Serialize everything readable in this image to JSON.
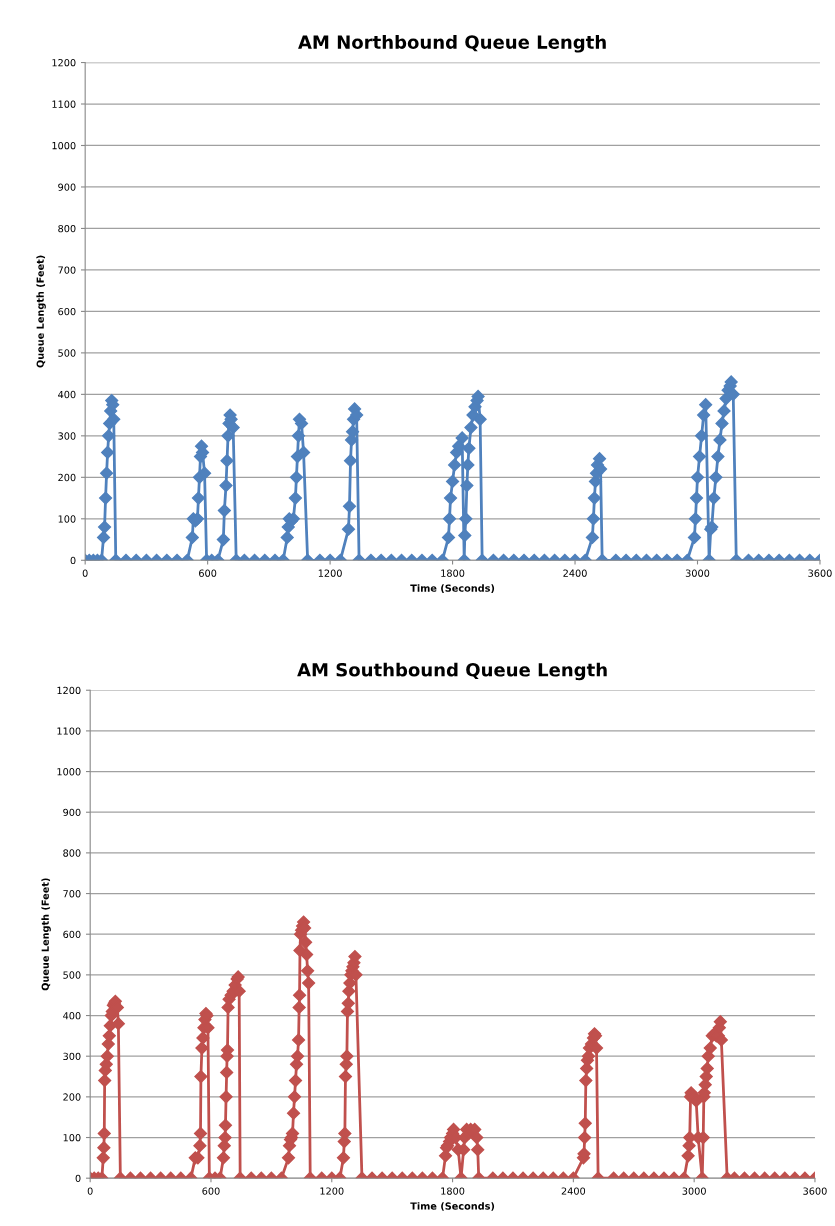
{
  "chart_data": [
    {
      "type": "line",
      "title": "AM Northbound Queue Length",
      "xlabel": "Time (Seconds)",
      "ylabel": "Queue Length (Feet)",
      "xlim": [
        0,
        3600
      ],
      "ylim": [
        0,
        1200
      ],
      "xticks": [
        0,
        600,
        1200,
        1800,
        2400,
        3000,
        3600
      ],
      "yticks": [
        0,
        100,
        200,
        300,
        400,
        500,
        600,
        700,
        800,
        900,
        1000,
        1100,
        1200
      ],
      "grid": "y",
      "marker": "diamond",
      "line_style": "solid",
      "series": [
        {
          "color": "#4f81bd",
          "x": [
            0,
            20,
            40,
            60,
            80,
            90,
            95,
            100,
            105,
            110,
            115,
            120,
            125,
            130,
            135,
            140,
            150,
            200,
            250,
            300,
            350,
            400,
            450,
            500,
            525,
            530,
            540,
            550,
            555,
            560,
            565,
            570,
            575,
            585,
            595,
            620,
            650,
            677,
            682,
            690,
            695,
            700,
            705,
            710,
            715,
            725,
            740,
            780,
            830,
            880,
            930,
            970,
            990,
            995,
            1000,
            1010,
            1020,
            1030,
            1035,
            1040,
            1045,
            1050,
            1060,
            1070,
            1090,
            1150,
            1200,
            1250,
            1290,
            1295,
            1300,
            1305,
            1310,
            1315,
            1320,
            1330,
            1342,
            1400,
            1450,
            1500,
            1550,
            1600,
            1650,
            1700,
            1750,
            1780,
            1785,
            1790,
            1800,
            1810,
            1820,
            1830,
            1847,
            1857,
            1860,
            1865,
            1870,
            1875,
            1880,
            1890,
            1900,
            1910,
            1920,
            1925,
            1935,
            1945,
            2000,
            2050,
            2100,
            2150,
            2200,
            2250,
            2300,
            2350,
            2400,
            2450,
            2485,
            2490,
            2495,
            2500,
            2505,
            2510,
            2520,
            2525,
            2533,
            2600,
            2650,
            2700,
            2750,
            2800,
            2850,
            2900,
            2950,
            2985,
            2990,
            2995,
            3000,
            3010,
            3020,
            3030,
            3040,
            3057,
            3065,
            3070,
            3080,
            3090,
            3100,
            3110,
            3120,
            3130,
            3140,
            3150,
            3160,
            3165,
            3175,
            3190,
            3250,
            3300,
            3350,
            3400,
            3450,
            3500,
            3550,
            3600
          ],
          "values": [
            0,
            0,
            0,
            0,
            0,
            55,
            80,
            150,
            210,
            260,
            300,
            330,
            360,
            385,
            375,
            340,
            0,
            0,
            0,
            0,
            0,
            0,
            0,
            0,
            55,
            100,
            95,
            100,
            150,
            200,
            250,
            275,
            260,
            210,
            0,
            0,
            0,
            50,
            120,
            180,
            240,
            300,
            330,
            350,
            340,
            320,
            0,
            0,
            0,
            0,
            0,
            0,
            55,
            80,
            100,
            95,
            100,
            150,
            200,
            250,
            300,
            340,
            330,
            260,
            0,
            0,
            0,
            0,
            75,
            130,
            240,
            290,
            310,
            340,
            365,
            350,
            0,
            0,
            0,
            0,
            0,
            0,
            0,
            0,
            0,
            55,
            100,
            150,
            190,
            230,
            260,
            275,
            295,
            0,
            60,
            100,
            180,
            230,
            270,
            320,
            350,
            370,
            385,
            395,
            340,
            0,
            0,
            0,
            0,
            0,
            0,
            0,
            0,
            0,
            0,
            0,
            55,
            100,
            150,
            190,
            210,
            230,
            245,
            220,
            0,
            0,
            0,
            0,
            0,
            0,
            0,
            0,
            0,
            55,
            100,
            150,
            200,
            250,
            300,
            350,
            375,
            0,
            75,
            80,
            150,
            200,
            250,
            290,
            330,
            360,
            390,
            410,
            420,
            430,
            400,
            0,
            0,
            0,
            0,
            0,
            0,
            0,
            0,
            0
          ]
        }
      ]
    },
    {
      "type": "line",
      "title": "AM Southbound Queue Length",
      "xlabel": "Time (Seconds)",
      "ylabel": "Queue Length (Feet)",
      "xlim": [
        0,
        3600
      ],
      "ylim": [
        0,
        1200
      ],
      "xticks": [
        0,
        600,
        1200,
        1800,
        2400,
        3000,
        3600
      ],
      "yticks": [
        0,
        100,
        200,
        300,
        400,
        500,
        600,
        700,
        800,
        900,
        1000,
        1100,
        1200
      ],
      "grid": "y",
      "marker": "diamond",
      "line_style": "solid",
      "series": [
        {
          "color": "#c0504d",
          "x": [
            0,
            20,
            40,
            58,
            65,
            68,
            70,
            72,
            75,
            80,
            85,
            90,
            95,
            100,
            105,
            110,
            115,
            120,
            125,
            135,
            140,
            150,
            200,
            250,
            300,
            350,
            400,
            450,
            500,
            522,
            535,
            545,
            548,
            550,
            555,
            560,
            565,
            570,
            575,
            580,
            585,
            592,
            620,
            645,
            662,
            666,
            670,
            672,
            675,
            678,
            680,
            682,
            685,
            690,
            700,
            710,
            720,
            730,
            735,
            740,
            745,
            800,
            850,
            900,
            950,
            985,
            990,
            995,
            1000,
            1005,
            1010,
            1015,
            1020,
            1025,
            1030,
            1035,
            1038,
            1040,
            1042,
            1045,
            1050,
            1055,
            1060,
            1065,
            1070,
            1075,
            1080,
            1085,
            1093,
            1150,
            1200,
            1240,
            1258,
            1262,
            1265,
            1268,
            1272,
            1275,
            1278,
            1282,
            1285,
            1290,
            1295,
            1300,
            1305,
            1310,
            1315,
            1320,
            1350,
            1400,
            1450,
            1500,
            1550,
            1600,
            1650,
            1700,
            1750,
            1765,
            1770,
            1775,
            1785,
            1790,
            1800,
            1805,
            1815,
            1828,
            1842,
            1855,
            1860,
            1870,
            1880,
            1890,
            1900,
            1910,
            1920,
            1925,
            1930,
            2000,
            2050,
            2100,
            2150,
            2200,
            2250,
            2300,
            2350,
            2400,
            2450,
            2453,
            2456,
            2459,
            2462,
            2466,
            2470,
            2475,
            2480,
            2490,
            2500,
            2505,
            2510,
            2515,
            2523,
            2600,
            2650,
            2700,
            2750,
            2800,
            2850,
            2900,
            2950,
            2970,
            2975,
            2978,
            2982,
            2985,
            2990,
            3000,
            3010,
            3020,
            3040,
            3045,
            3048,
            3050,
            3055,
            3060,
            3065,
            3070,
            3080,
            3090,
            3100,
            3110,
            3120,
            3125,
            3130,
            3135,
            3164,
            3200,
            3250,
            3300,
            3350,
            3400,
            3450,
            3500,
            3550,
            3600
          ],
          "values": [
            0,
            0,
            0,
            0,
            50,
            75,
            110,
            240,
            265,
            280,
            300,
            330,
            350,
            375,
            400,
            410,
            425,
            430,
            435,
            420,
            380,
            0,
            0,
            0,
            0,
            0,
            0,
            0,
            0,
            50,
            50,
            80,
            110,
            250,
            320,
            345,
            370,
            390,
            405,
            400,
            370,
            0,
            0,
            0,
            50,
            80,
            100,
            130,
            200,
            260,
            300,
            315,
            420,
            440,
            450,
            460,
            475,
            490,
            495,
            460,
            0,
            0,
            0,
            0,
            0,
            50,
            80,
            95,
            100,
            110,
            160,
            200,
            240,
            280,
            300,
            340,
            420,
            450,
            560,
            600,
            610,
            620,
            630,
            615,
            580,
            550,
            510,
            480,
            0,
            0,
            0,
            0,
            50,
            90,
            110,
            250,
            280,
            300,
            410,
            430,
            460,
            480,
            500,
            510,
            520,
            530,
            545,
            500,
            0,
            0,
            0,
            0,
            0,
            0,
            0,
            0,
            0,
            55,
            75,
            80,
            90,
            100,
            110,
            120,
            100,
            70,
            0,
            70,
            100,
            120,
            110,
            120,
            115,
            120,
            100,
            70,
            0,
            0,
            0,
            0,
            0,
            0,
            0,
            0,
            0,
            0,
            50,
            60,
            100,
            135,
            240,
            270,
            290,
            300,
            320,
            330,
            345,
            355,
            350,
            320,
            0,
            0,
            0,
            0,
            0,
            0,
            0,
            0,
            0,
            55,
            80,
            100,
            200,
            210,
            205,
            200,
            190,
            100,
            0,
            100,
            200,
            210,
            230,
            250,
            270,
            300,
            320,
            350,
            355,
            350,
            350,
            370,
            385,
            340,
            0,
            0,
            0,
            0,
            0,
            0,
            0,
            0,
            0,
            0
          ]
        }
      ]
    }
  ]
}
